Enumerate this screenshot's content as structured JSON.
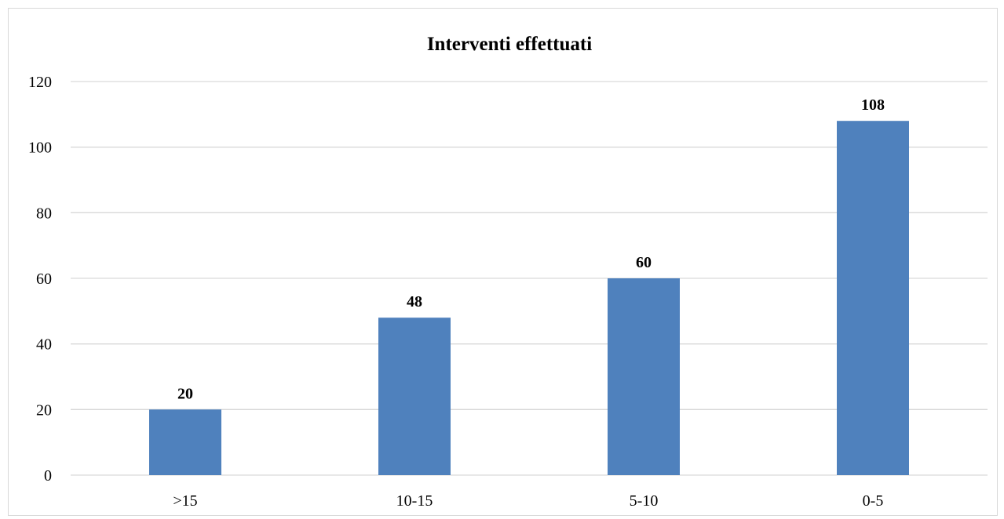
{
  "chart_data": {
    "type": "bar",
    "title": "Interventi effettuati",
    "xlabel": "",
    "ylabel": "",
    "categories": [
      ">15",
      "10-15",
      "5-10",
      "0-5"
    ],
    "values": [
      20,
      48,
      60,
      108
    ],
    "ylim": [
      0,
      120
    ],
    "yticks": [
      0,
      20,
      40,
      60,
      80,
      100,
      120
    ],
    "grid": true,
    "legend": "none",
    "bar_color": "#4f81bd",
    "grid_color": "#d9d9d9",
    "data_labels": true
  }
}
